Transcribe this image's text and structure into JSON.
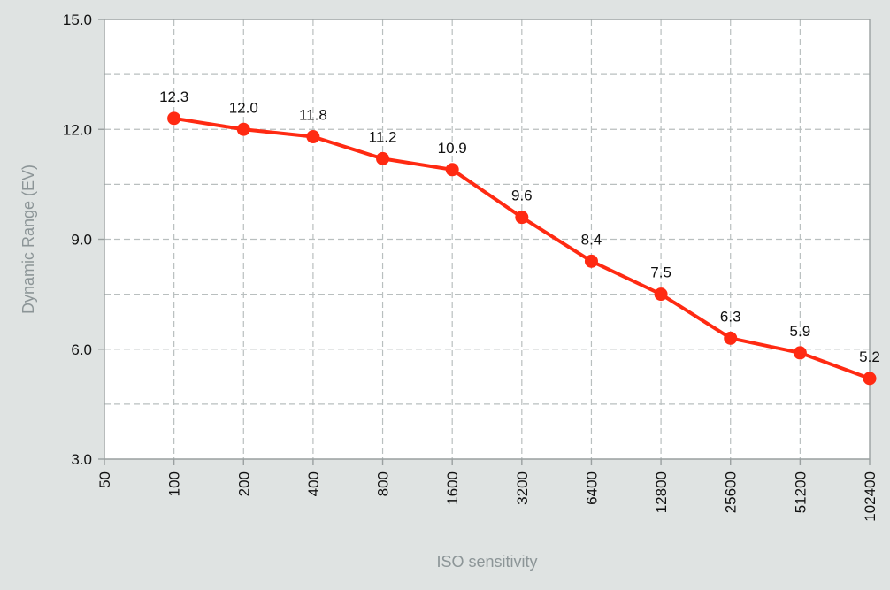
{
  "chart_data": {
    "type": "line",
    "title": "",
    "xlabel": "ISO sensitivity",
    "ylabel": "Dynamic Range (EV)",
    "categories": [
      "50",
      "100",
      "200",
      "400",
      "800",
      "1600",
      "3200",
      "6400",
      "12800",
      "25600",
      "51200",
      "102400"
    ],
    "series": [
      {
        "values": [
          null,
          12.3,
          12.0,
          11.8,
          11.2,
          10.9,
          9.6,
          8.4,
          7.5,
          6.3,
          5.9,
          5.2
        ],
        "labels": [
          "",
          "12.3",
          "12.0",
          "11.8",
          "11.2",
          "10.9",
          "9.6",
          "8.4",
          "7.5",
          "6.3",
          "5.9",
          "5.2"
        ],
        "color": "#ff2a12"
      }
    ],
    "ylim": [
      3.0,
      15.0
    ],
    "yticks": [
      3.0,
      6.0,
      9.0,
      12.0,
      15.0
    ],
    "ytick_labels": [
      "3.0",
      "6.0",
      "9.0",
      "12.0",
      "15.0"
    ],
    "grid": true,
    "colors": {
      "background": "#dfe3e2",
      "plot_area": "#ffffff",
      "grid": "#b9bfbf",
      "axis": "#9aa0a0"
    }
  }
}
